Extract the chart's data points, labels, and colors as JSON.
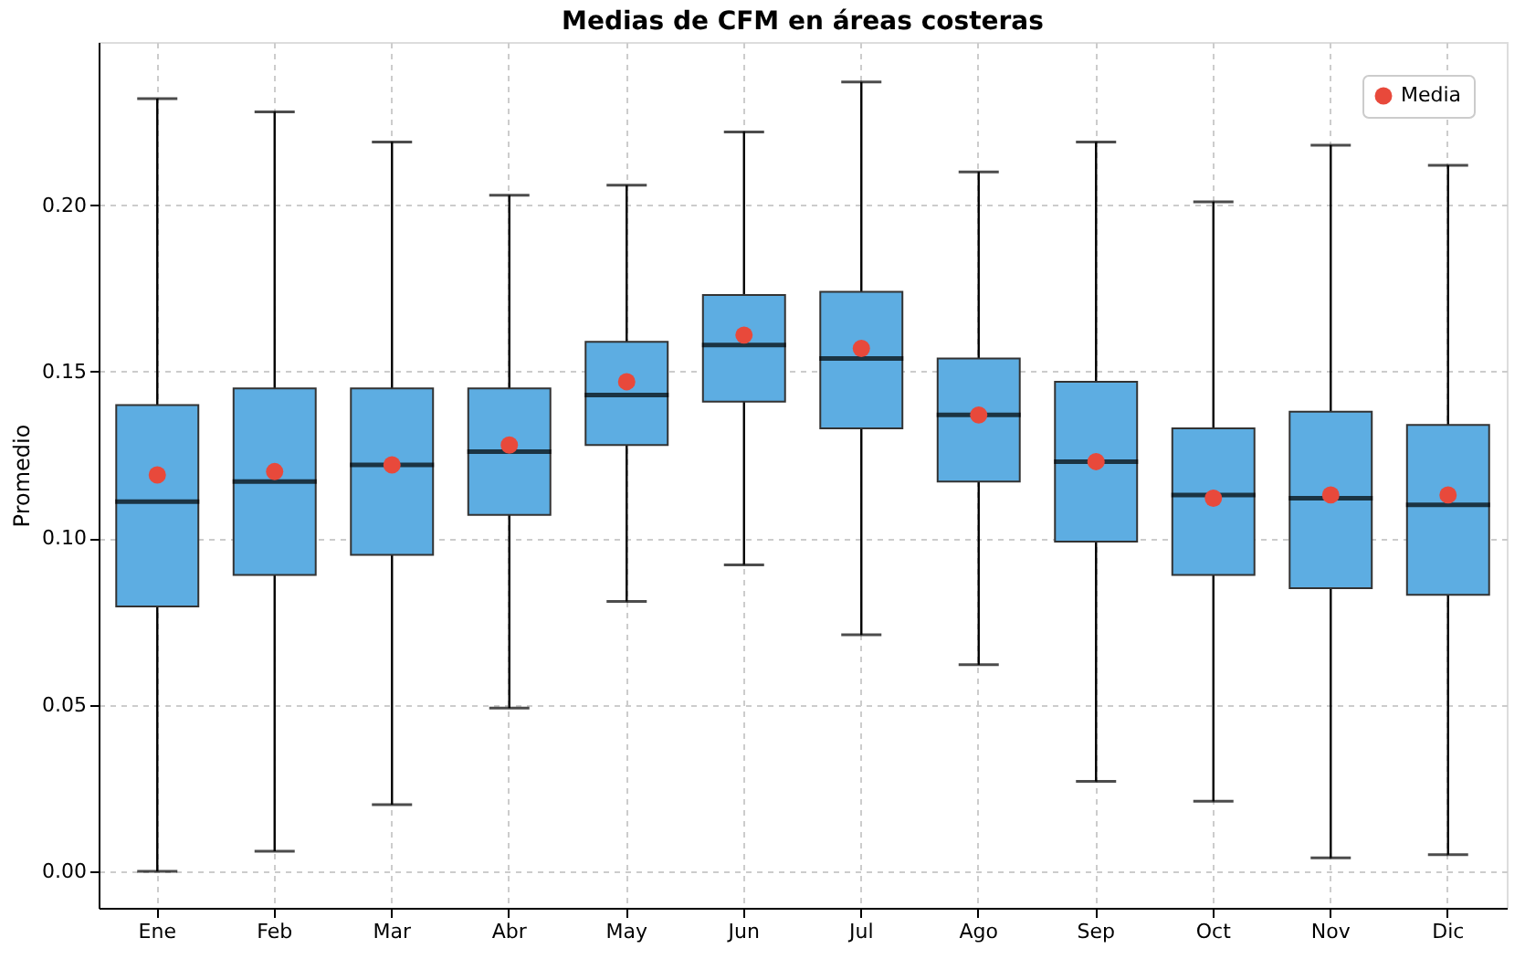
{
  "chart_data": {
    "type": "box",
    "title": "Medias de CFM en áreas costeras",
    "ylabel": "Promedio",
    "categories": [
      "Ene",
      "Feb",
      "Mar",
      "Abr",
      "May",
      "Jun",
      "Jul",
      "Ago",
      "Sep",
      "Oct",
      "Nov",
      "Dic"
    ],
    "ylim": [
      -0.011,
      0.249
    ],
    "yticks": [
      {
        "value": 0,
        "label": "0.00"
      },
      0.05,
      {
        "value": 0.1,
        "label": "0.10"
      },
      0.15,
      {
        "value": 0.2,
        "label": "0.20"
      }
    ],
    "grid": true,
    "legend": "top right",
    "series": [
      {
        "color": "#5dade2",
        "boxes": [
          {
            "low": 0.0,
            "q1": 0.0795,
            "median": 0.111,
            "q3": 0.14,
            "high": 0.232
          },
          {
            "low": 0.006,
            "q1": 0.089,
            "median": 0.117,
            "q3": 0.145,
            "high": 0.228
          },
          {
            "low": 0.02,
            "q1": 0.095,
            "median": 0.122,
            "q3": 0.145,
            "high": 0.219
          },
          {
            "low": 0.049,
            "q1": 0.107,
            "median": 0.126,
            "q3": 0.145,
            "high": 0.203
          },
          {
            "low": 0.081,
            "q1": 0.128,
            "median": 0.143,
            "q3": 0.159,
            "high": 0.206
          },
          {
            "low": 0.092,
            "q1": 0.141,
            "median": 0.158,
            "q3": 0.173,
            "high": 0.222
          },
          {
            "low": 0.071,
            "q1": 0.133,
            "median": 0.154,
            "q3": 0.174,
            "high": 0.237
          },
          {
            "low": 0.062,
            "q1": 0.117,
            "median": 0.137,
            "q3": 0.154,
            "high": 0.21
          },
          {
            "low": 0.027,
            "q1": 0.099,
            "median": 0.123,
            "q3": 0.147,
            "high": 0.219
          },
          {
            "low": 0.021,
            "q1": 0.089,
            "median": 0.113,
            "q3": 0.133,
            "high": 0.201
          },
          {
            "low": 0.004,
            "q1": 0.085,
            "median": 0.112,
            "q3": 0.138,
            "high": 0.218
          },
          {
            "low": 0.005,
            "q1": 0.083,
            "median": 0.11,
            "q3": 0.134,
            "high": 0.212
          }
        ]
      },
      {
        "name": "Media",
        "type": "scatter",
        "marker": "circle",
        "color": "#e8493b",
        "values": [
          0.119,
          0.12,
          0.122,
          0.128,
          0.147,
          0.161,
          0.157,
          0.137,
          0.123,
          0.112,
          0.113,
          0.113
        ]
      }
    ]
  }
}
